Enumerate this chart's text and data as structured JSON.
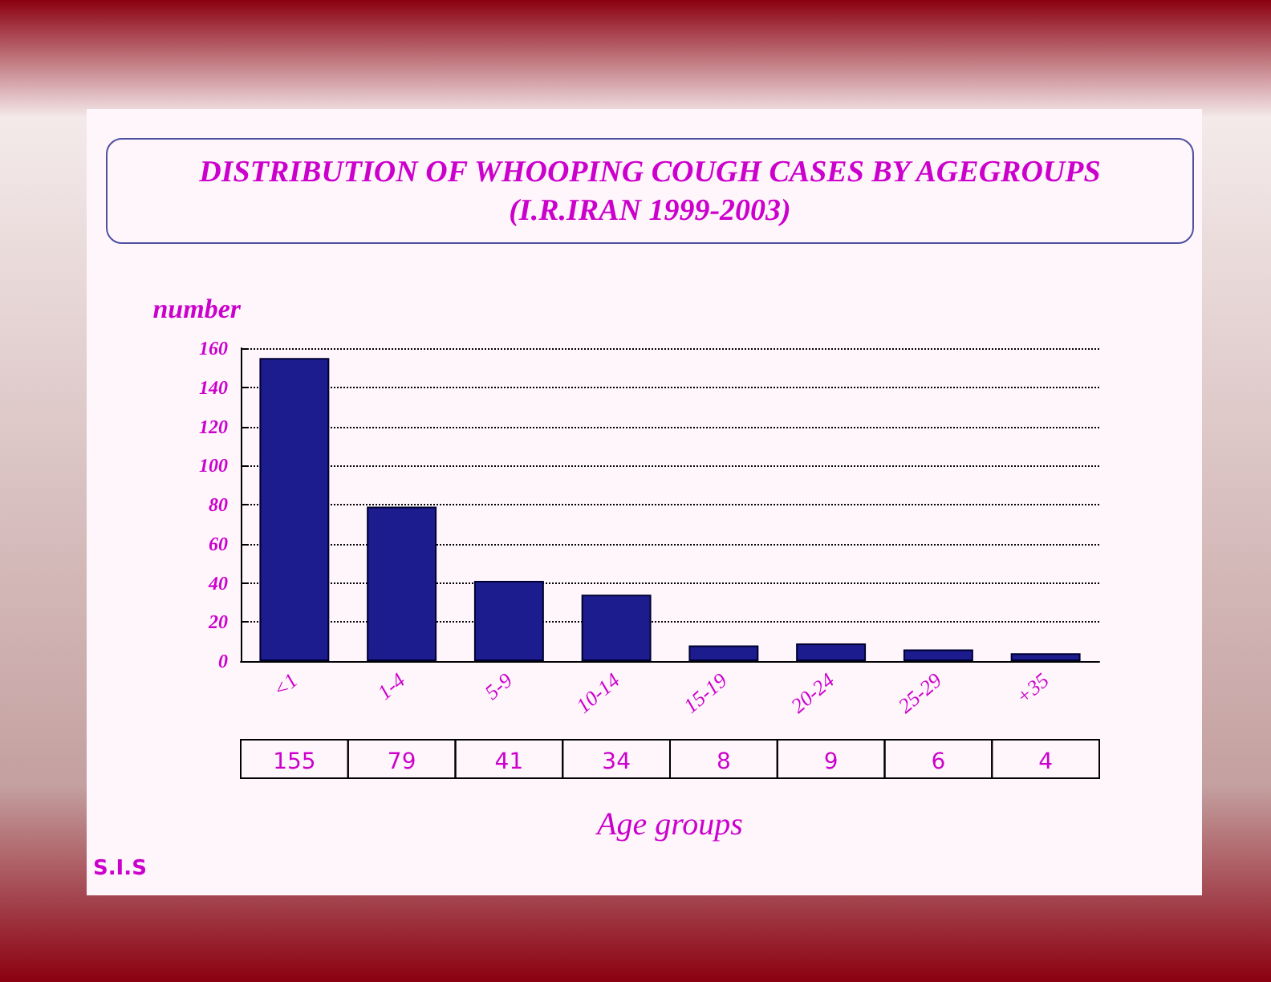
{
  "chart_data": {
    "type": "bar",
    "title": "DISTRIBUTION OF WHOOPING COUGH CASES BY AGEGROUPS",
    "subtitle": "(I.R.IRAN 1999-2003)",
    "xlabel": "Age groups",
    "ylabel": "number",
    "categories": [
      "<1",
      "1-4",
      "5-9",
      "10-14",
      "15-19",
      "20-24",
      "25-29",
      "+35"
    ],
    "values": [
      155,
      79,
      41,
      34,
      8,
      9,
      6,
      4
    ],
    "color": "#1c1c8f",
    "ylim": [
      0,
      160
    ],
    "yticks": [
      0,
      20,
      40,
      60,
      80,
      100,
      120,
      140,
      160
    ],
    "grid": "y",
    "data_labels": true,
    "annotations": [
      "S.I.S"
    ]
  }
}
